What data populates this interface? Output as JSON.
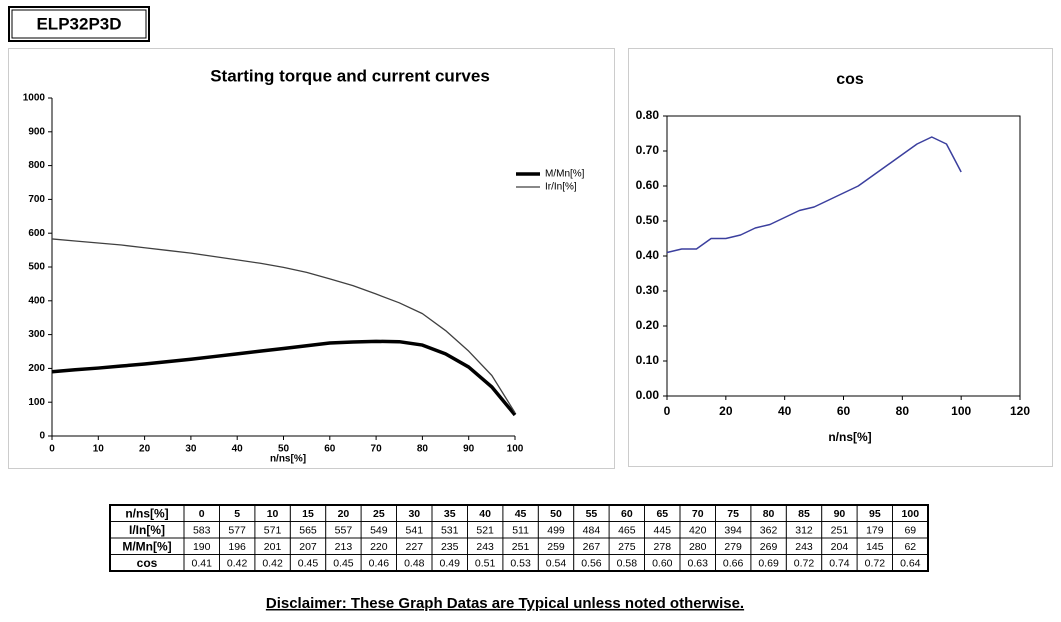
{
  "header": {
    "title": "ELP32P3D"
  },
  "chart_data": [
    {
      "type": "line",
      "title": "Starting torque and current curves",
      "x_label": "n/ns[%]",
      "x": [
        0,
        5,
        10,
        15,
        20,
        25,
        30,
        35,
        40,
        45,
        50,
        55,
        60,
        65,
        70,
        75,
        80,
        85,
        90,
        95,
        100
      ],
      "series": [
        {
          "name": "M/Mn[%]",
          "color": "#000000",
          "values": [
            190,
            196,
            201,
            207,
            213,
            220,
            227,
            235,
            243,
            251,
            259,
            267,
            275,
            278,
            280,
            279,
            269,
            243,
            204,
            145,
            62
          ]
        },
        {
          "name": "Ir/In[%]",
          "color": "#404040",
          "values": [
            583,
            577,
            571,
            565,
            557,
            549,
            541,
            531,
            521,
            511,
            499,
            484,
            465,
            445,
            420,
            394,
            362,
            312,
            251,
            179,
            69
          ]
        }
      ],
      "xlim": [
        0,
        100
      ],
      "xticks": [
        0,
        10,
        20,
        30,
        40,
        50,
        60,
        70,
        80,
        90,
        100
      ],
      "ylim": [
        0,
        1000
      ],
      "yticks": [
        0,
        100,
        200,
        300,
        400,
        500,
        600,
        700,
        800,
        900,
        1000
      ],
      "grid": false,
      "legend": "right"
    },
    {
      "type": "line",
      "title": "cos",
      "x_label": "n/ns[%]",
      "x": [
        0,
        5,
        10,
        15,
        20,
        25,
        30,
        35,
        40,
        45,
        50,
        55,
        60,
        65,
        70,
        75,
        80,
        85,
        90,
        95,
        100
      ],
      "color": "#3b3f9e",
      "values": [
        0.41,
        0.42,
        0.42,
        0.45,
        0.45,
        0.46,
        0.48,
        0.49,
        0.51,
        0.53,
        0.54,
        0.56,
        0.58,
        0.6,
        0.63,
        0.66,
        0.69,
        0.72,
        0.74,
        0.72,
        0.64
      ],
      "xlim": [
        0,
        120
      ],
      "xticks": [
        0,
        20,
        40,
        60,
        80,
        100,
        120
      ],
      "ylim": [
        0,
        0.8
      ],
      "yticks": [
        {
          "value": 0,
          "label": "0.00"
        },
        {
          "value": 0.1,
          "label": "0.10"
        },
        {
          "value": 0.2,
          "label": "0.20"
        },
        {
          "value": 0.3,
          "label": "0.30"
        },
        {
          "value": 0.4,
          "label": "0.40"
        },
        {
          "value": 0.5,
          "label": "0.50"
        },
        {
          "value": 0.6,
          "label": "0.60"
        },
        {
          "value": 0.7,
          "label": "0.70"
        },
        {
          "value": 0.8,
          "label": "0.80"
        }
      ],
      "grid": false,
      "frame": true
    }
  ],
  "table": {
    "rows": [
      [
        "n/ns[%]",
        "0",
        "5",
        "10",
        "15",
        "20",
        "25",
        "30",
        "35",
        "40",
        "45",
        "50",
        "55",
        "60",
        "65",
        "70",
        "75",
        "80",
        "85",
        "90",
        "95",
        "100"
      ],
      [
        "I/In[%]",
        "583",
        "577",
        "571",
        "565",
        "557",
        "549",
        "541",
        "531",
        "521",
        "511",
        "499",
        "484",
        "465",
        "445",
        "420",
        "394",
        "362",
        "312",
        "251",
        "179",
        "69"
      ],
      [
        "M/Mn[%]",
        "190",
        "196",
        "201",
        "207",
        "213",
        "220",
        "227",
        "235",
        "243",
        "251",
        "259",
        "267",
        "275",
        "278",
        "280",
        "279",
        "269",
        "243",
        "204",
        "145",
        "62"
      ],
      [
        "cos",
        "0.41",
        "0.42",
        "0.42",
        "0.45",
        "0.45",
        "0.46",
        "0.48",
        "0.49",
        "0.51",
        "0.53",
        "0.54",
        "0.56",
        "0.58",
        "0.60",
        "0.63",
        "0.66",
        "0.69",
        "0.72",
        "0.74",
        "0.72",
        "0.64"
      ]
    ]
  },
  "footer": {
    "disclaimer": "Disclaimer: These Graph Datas are Typical unless noted otherwise."
  }
}
